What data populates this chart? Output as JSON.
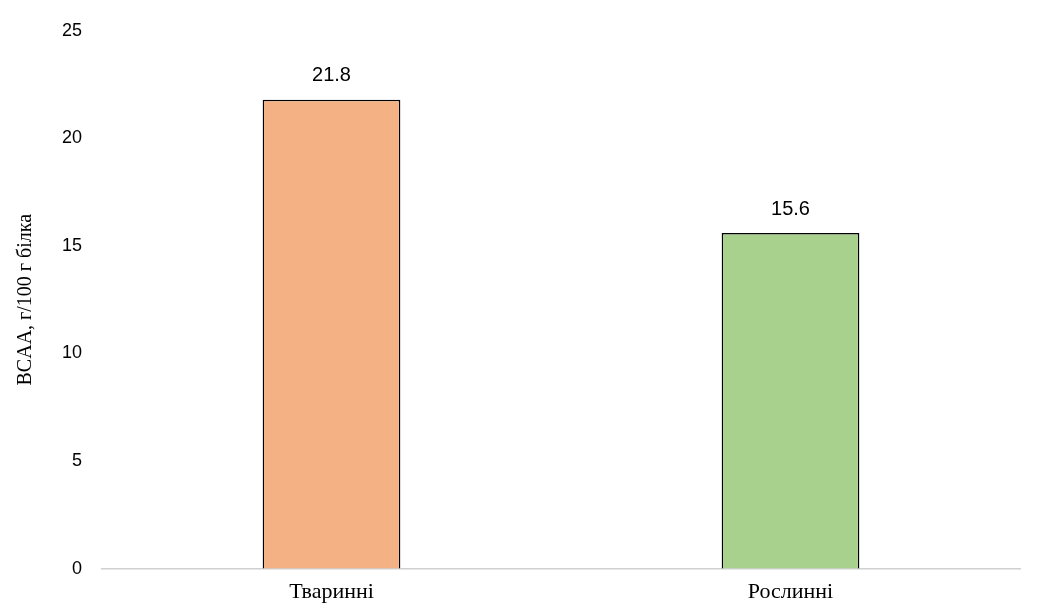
{
  "chart_data": {
    "type": "bar",
    "ylabel": "BCAA, г/100 г білка",
    "categories": [
      "Тваринні",
      "Рослинні"
    ],
    "values": [
      21.8,
      15.6
    ],
    "colors": [
      "#f4b183",
      "#a9d18e"
    ],
    "ylim": [
      0,
      25
    ],
    "yticks": [
      0,
      5,
      10,
      15,
      20,
      25
    ],
    "grid": false,
    "data_labels": true
  }
}
